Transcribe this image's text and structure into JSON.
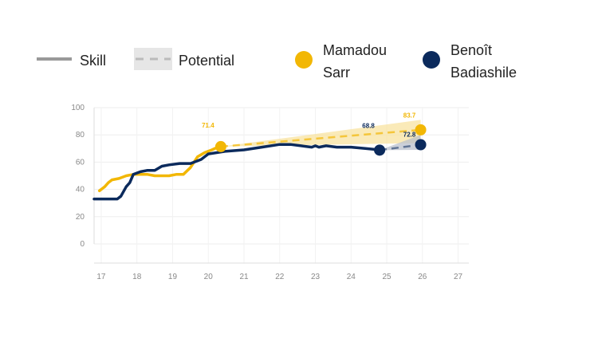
{
  "chart_data": {
    "type": "line",
    "xlim": [
      16.8,
      27.3
    ],
    "ylim": [
      0,
      100
    ],
    "x_ticks": [
      "17",
      "18",
      "19",
      "20",
      "21",
      "22",
      "23",
      "24",
      "25",
      "26",
      "27"
    ],
    "y_ticks": [
      "100",
      "80",
      "60",
      "40",
      "20",
      "0"
    ],
    "grid": true,
    "legend_placement": "top",
    "legend": {
      "skill_label": "Skill",
      "potential_label": "Potential",
      "player1_line1": "Mamadou",
      "player1_line2": "Sarr",
      "player2_line1": "Benoît",
      "player2_line2": "Badiashile"
    },
    "colors": {
      "player1": "#f2b705",
      "player2": "#0b2a5c",
      "skill_swatch": "#999999",
      "potential_swatch": "#bbbbbb",
      "potential_fill": "#e6e6e6"
    },
    "series": [
      {
        "name": "Mamadou Sarr",
        "role": "skill",
        "x": [
          16.95,
          17.1,
          17.2,
          17.3,
          17.5,
          17.7,
          17.9,
          18.1,
          18.3,
          18.5,
          18.7,
          18.9,
          19.1,
          19.3,
          19.5,
          19.7,
          19.9,
          20.1,
          20.35
        ],
        "y": [
          39,
          42,
          45,
          47,
          48,
          50,
          51,
          51,
          51,
          50,
          50,
          50,
          51,
          51,
          56,
          64,
          67,
          69,
          72
        ]
      },
      {
        "name": "Benoît Badiashile",
        "role": "skill",
        "x": [
          16.8,
          17.2,
          17.45,
          17.55,
          17.7,
          17.8,
          17.9,
          18.1,
          18.3,
          18.5,
          18.7,
          18.9,
          19.2,
          19.5,
          19.8,
          20.0,
          20.5,
          21.0,
          21.5,
          22.0,
          22.3,
          22.6,
          22.9,
          23.0,
          23.1,
          23.3,
          23.6,
          24.0,
          24.4,
          24.8
        ],
        "y": [
          33,
          33,
          33,
          35,
          42,
          45,
          51,
          53,
          54,
          54,
          57,
          58,
          59,
          59,
          62,
          66,
          68,
          69,
          71,
          73,
          73,
          72,
          71,
          72,
          71,
          72,
          71,
          71,
          70,
          69
        ]
      }
    ],
    "projections": [
      {
        "name": "Mamadou Sarr",
        "start": [
          20.35,
          71.4
        ],
        "end": [
          25.95,
          83.7
        ],
        "potential_high": 91,
        "potential_low": 74,
        "label_start": "71.4",
        "label_end": "83.7"
      },
      {
        "name": "Benoît Badiashile",
        "start": [
          24.8,
          68.8
        ],
        "end": [
          25.95,
          72.8
        ],
        "potential_high": 80,
        "potential_low": 69,
        "label_start": "68.8",
        "label_end": "72.8"
      }
    ]
  }
}
